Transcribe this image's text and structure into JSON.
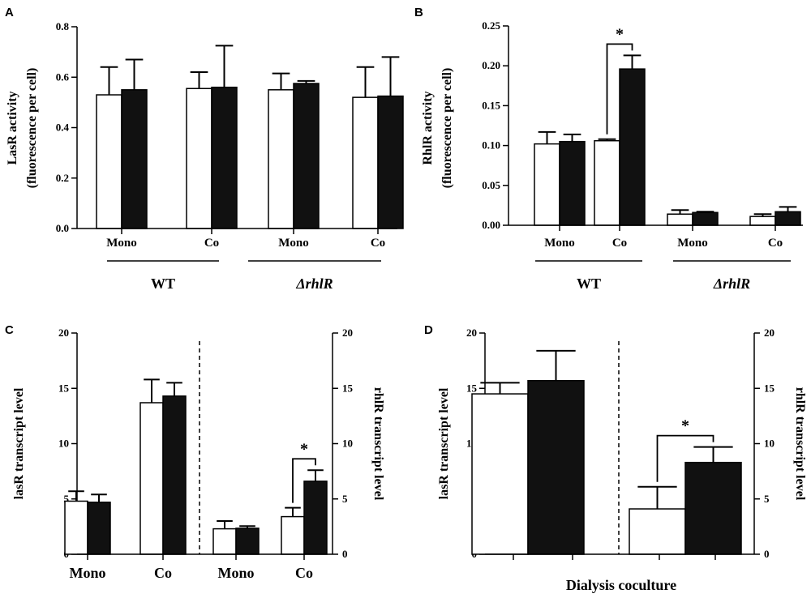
{
  "chart_data": [
    {
      "panel": "A",
      "type": "bar",
      "ylabel": [
        "LasR activity",
        "(fluorescence per cell)"
      ],
      "ylim": [
        0,
        0.8
      ],
      "yticks": [
        "0.0",
        "0.2",
        "0.4",
        "0.6",
        "0.8"
      ],
      "categories": [
        "Mono",
        "Co",
        "Mono",
        "Co"
      ],
      "groups": [
        {
          "label": "WT"
        },
        {
          "label": "ΔrhlR"
        }
      ],
      "series": [
        {
          "name": "white",
          "values": [
            0.53,
            0.555,
            0.55,
            0.52
          ],
          "errors": [
            0.11,
            0.065,
            0.065,
            0.12
          ]
        },
        {
          "name": "black",
          "values": [
            0.55,
            0.56,
            0.575,
            0.525
          ],
          "errors": [
            0.12,
            0.165,
            0.01,
            0.155
          ]
        }
      ]
    },
    {
      "panel": "B",
      "type": "bar",
      "ylabel": [
        "RhlR activity",
        "(fluorescence per cell)"
      ],
      "ylim": [
        0,
        0.25
      ],
      "yticks": [
        "0.00",
        "0.05",
        "0.10",
        "0.15",
        "0.20",
        "0.25"
      ],
      "categories": [
        "Mono",
        "Co",
        "Mono",
        "Co"
      ],
      "groups": [
        {
          "label": "WT"
        },
        {
          "label": "ΔrhlR"
        }
      ],
      "series": [
        {
          "name": "white",
          "values": [
            0.102,
            0.106,
            0.014,
            0.011
          ],
          "errors": [
            0.015,
            0.002,
            0.005,
            0.003
          ]
        },
        {
          "name": "black",
          "values": [
            0.105,
            0.196,
            0.016,
            0.017
          ],
          "errors": [
            0.009,
            0.017,
            0.001,
            0.006
          ]
        }
      ],
      "significance": [
        {
          "category": 1,
          "label": "*"
        }
      ]
    },
    {
      "panel": "C",
      "type": "bar",
      "ylabel_left": "lasR transcript level",
      "ylabel_right": "rhlR transcript level",
      "ylim": [
        0,
        20
      ],
      "yticks": [
        "0",
        "5",
        "10",
        "15",
        "20"
      ],
      "categories": [
        "Mono",
        "Co",
        "Mono",
        "Co"
      ],
      "series": [
        {
          "name": "white",
          "values": [
            4.8,
            13.7,
            2.3,
            3.4
          ],
          "errors": [
            0.9,
            2.1,
            0.7,
            0.8
          ]
        },
        {
          "name": "black",
          "values": [
            4.7,
            14.3,
            2.35,
            6.6
          ],
          "errors": [
            0.7,
            1.2,
            0.2,
            1.0
          ]
        }
      ],
      "significance": [
        {
          "category": 3,
          "label": "*"
        }
      ]
    },
    {
      "panel": "D",
      "type": "bar",
      "ylabel_left": "lasR transcript level",
      "ylabel_right": "rhlR transcript level",
      "ylim": [
        0,
        20
      ],
      "yticks": [
        "0",
        "5",
        "10",
        "15",
        "20"
      ],
      "xlabel": "Dialysis coculture",
      "categories": [
        "",
        ""
      ],
      "series": [
        {
          "name": "white",
          "values": [
            14.5,
            4.1
          ],
          "errors": [
            1.0,
            2.0
          ]
        },
        {
          "name": "black",
          "values": [
            15.7,
            8.3
          ],
          "errors": [
            2.7,
            1.4
          ]
        }
      ],
      "significance": [
        {
          "category": 1,
          "label": "*"
        }
      ]
    }
  ]
}
